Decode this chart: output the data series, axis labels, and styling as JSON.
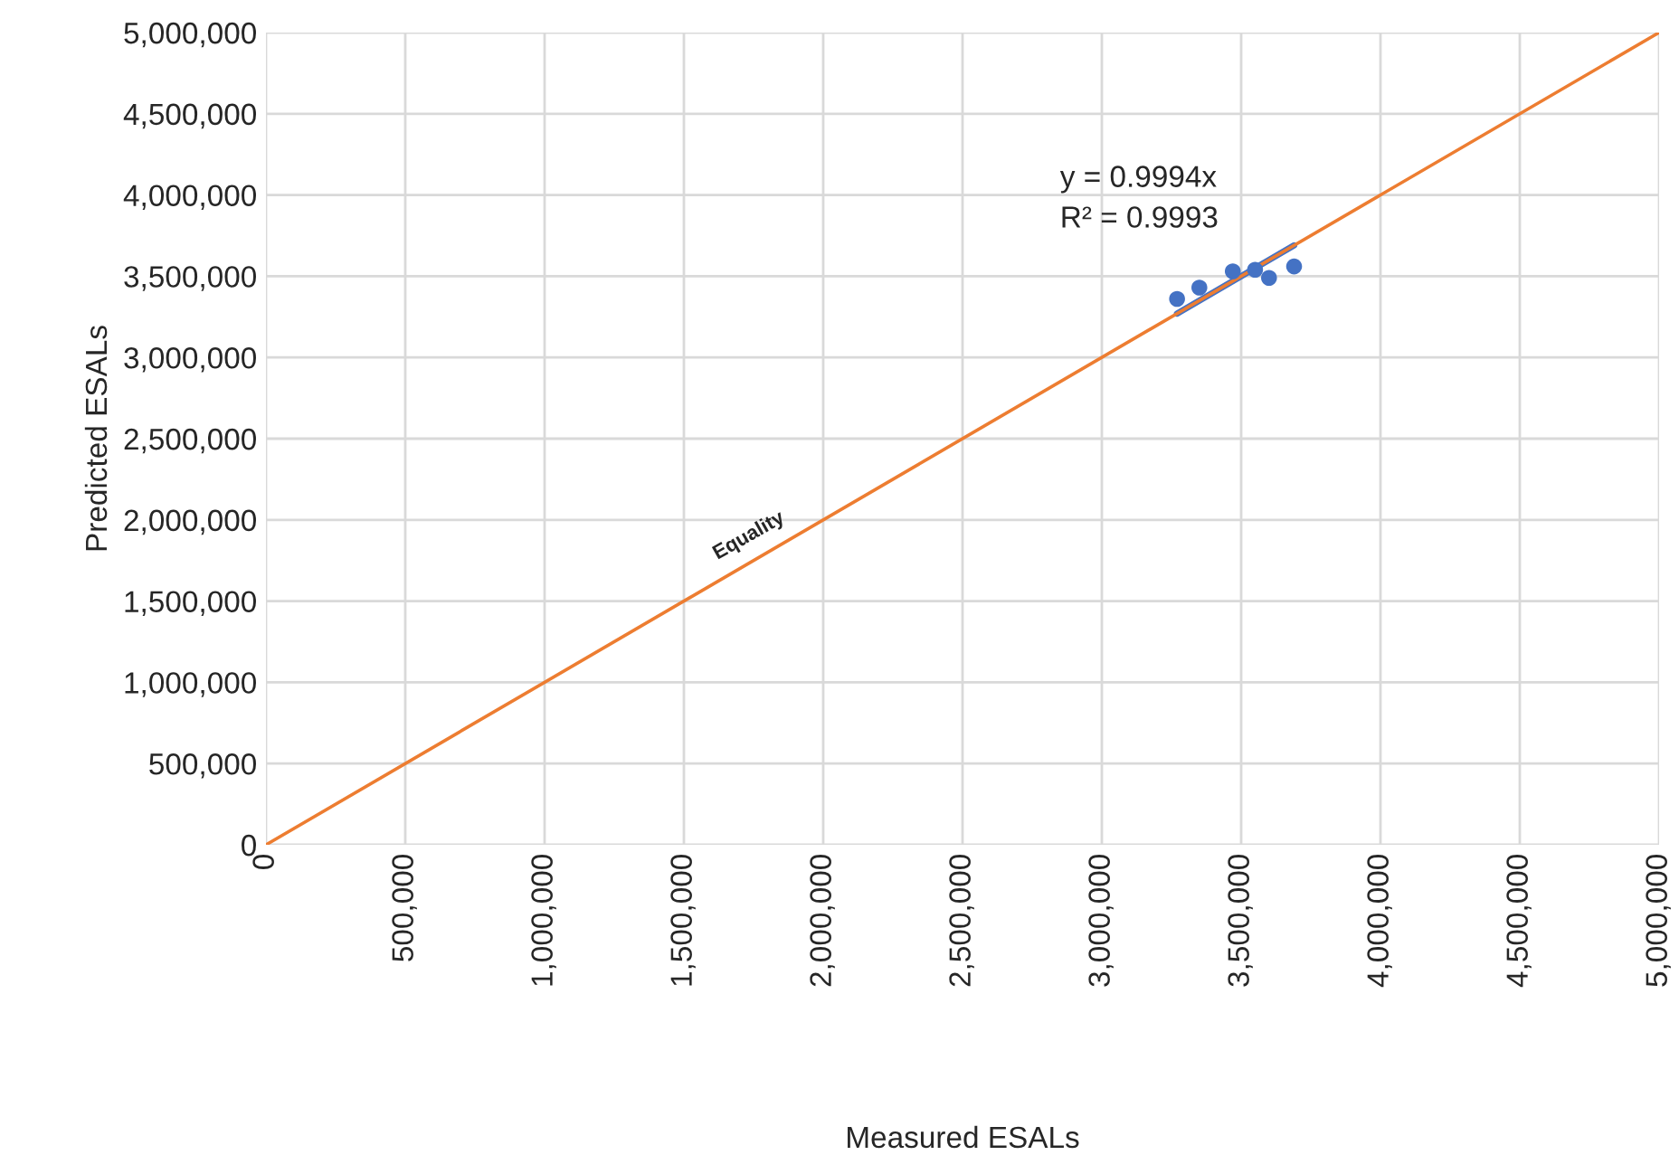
{
  "chart_data": {
    "type": "scatter",
    "xlabel": "Measured ESALs",
    "ylabel": "Predicted ESALs",
    "series": [
      {
        "color": "#4472c4",
        "marker": "circle",
        "x": [
          3270000,
          3350000,
          3470000,
          3550000,
          3600000,
          3690000
        ],
        "values": [
          3360000,
          3430000,
          3530000,
          3540000,
          3490000,
          3560000
        ]
      },
      {
        "type": "line",
        "color": "#4472c4",
        "x": [
          3270000,
          3690000
        ],
        "values": [
          3270000,
          3690000
        ]
      },
      {
        "type": "line",
        "name": "Equality",
        "color": "#ed7d31",
        "x": [
          0,
          5000000
        ],
        "values": [
          0,
          5000000
        ]
      }
    ],
    "annotations": [
      "y = 0.9994x",
      "R² = 0.9993"
    ],
    "xlim": [
      0,
      5000000
    ],
    "ylim": [
      0,
      5000000
    ],
    "xticks": [
      {
        "value": 0,
        "label": "0"
      },
      {
        "value": 500000,
        "label": "500,000"
      },
      {
        "value": 1000000,
        "label": "1,000,000"
      },
      {
        "value": 1500000,
        "label": "1,500,000"
      },
      {
        "value": 2000000,
        "label": "2,000,000"
      },
      {
        "value": 2500000,
        "label": "2,500,000"
      },
      {
        "value": 3000000,
        "label": "3,000,000"
      },
      {
        "value": 3500000,
        "label": "3,500,000"
      },
      {
        "value": 4000000,
        "label": "4,000,000"
      },
      {
        "value": 4500000,
        "label": "4,500,000"
      },
      {
        "value": 5000000,
        "label": "5,000,000"
      }
    ],
    "yticks": [
      {
        "value": 0,
        "label": "0"
      },
      {
        "value": 500000,
        "label": "500,000"
      },
      {
        "value": 1000000,
        "label": "1,000,000"
      },
      {
        "value": 1500000,
        "label": "1,500,000"
      },
      {
        "value": 2000000,
        "label": "2,000,000"
      },
      {
        "value": 2500000,
        "label": "2,500,000"
      },
      {
        "value": 3000000,
        "label": "3,000,000"
      },
      {
        "value": 3500000,
        "label": "3,500,000"
      },
      {
        "value": 4000000,
        "label": "4,000,000"
      },
      {
        "value": 4500000,
        "label": "4,500,000"
      },
      {
        "value": 5000000,
        "label": "5,000,000"
      }
    ],
    "grid": true
  }
}
